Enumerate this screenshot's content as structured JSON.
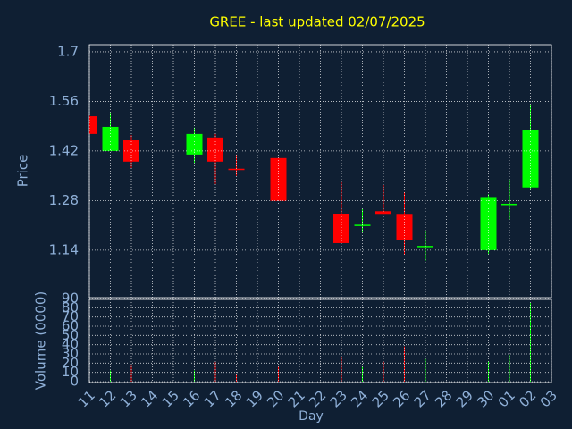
{
  "chart_data": {
    "type": "candlestick",
    "title": "GREE - last updated 02/07/2025",
    "xlabel": "Day",
    "ylabel": "Price",
    "categories": [
      "11",
      "12",
      "13",
      "14",
      "15",
      "16",
      "17",
      "18",
      "19",
      "20",
      "21",
      "22",
      "23",
      "24",
      "25",
      "26",
      "27",
      "28",
      "29",
      "30",
      "01",
      "02",
      "03"
    ],
    "open": [
      1.518,
      1.42,
      1.45,
      null,
      null,
      1.41,
      1.458,
      1.37,
      null,
      1.4,
      null,
      null,
      1.241,
      1.21,
      1.25,
      1.24,
      1.15,
      null,
      null,
      1.14,
      1.27,
      1.317,
      null
    ],
    "high": [
      1.52,
      1.528,
      1.465,
      null,
      null,
      1.486,
      1.468,
      1.41,
      null,
      1.4,
      null,
      null,
      1.332,
      1.256,
      1.324,
      1.304,
      1.195,
      null,
      null,
      1.298,
      1.34,
      1.549,
      null
    ],
    "low": [
      1.468,
      1.42,
      1.372,
      null,
      null,
      1.387,
      1.327,
      1.35,
      null,
      1.279,
      null,
      null,
      1.16,
      1.19,
      1.24,
      1.127,
      1.11,
      null,
      null,
      1.13,
      1.226,
      1.311,
      null
    ],
    "close": [
      1.468,
      1.488,
      1.39,
      null,
      null,
      1.468,
      1.39,
      1.368,
      null,
      1.279,
      null,
      null,
      1.16,
      1.212,
      1.24,
      1.17,
      1.152,
      null,
      null,
      1.29,
      1.271,
      1.478,
      null
    ],
    "ylim": [
      1.006,
      1.72
    ],
    "yticks": [
      1.14,
      1.28,
      1.42,
      1.56,
      1.7
    ],
    "up_color": "#00ff00",
    "down_color": "#ff0000",
    "title_color": "#ffff00",
    "grid": true,
    "volume": {
      "ylabel": "Volume (0000)",
      "values": [
        null,
        12,
        18,
        null,
        null,
        12,
        21,
        8,
        null,
        17,
        null,
        null,
        27,
        16,
        22,
        38,
        25,
        null,
        null,
        22,
        29,
        85,
        null
      ],
      "ylim": [
        0,
        90
      ],
      "yticks": [
        0,
        10,
        20,
        30,
        40,
        50,
        60,
        70,
        80,
        90
      ]
    }
  }
}
